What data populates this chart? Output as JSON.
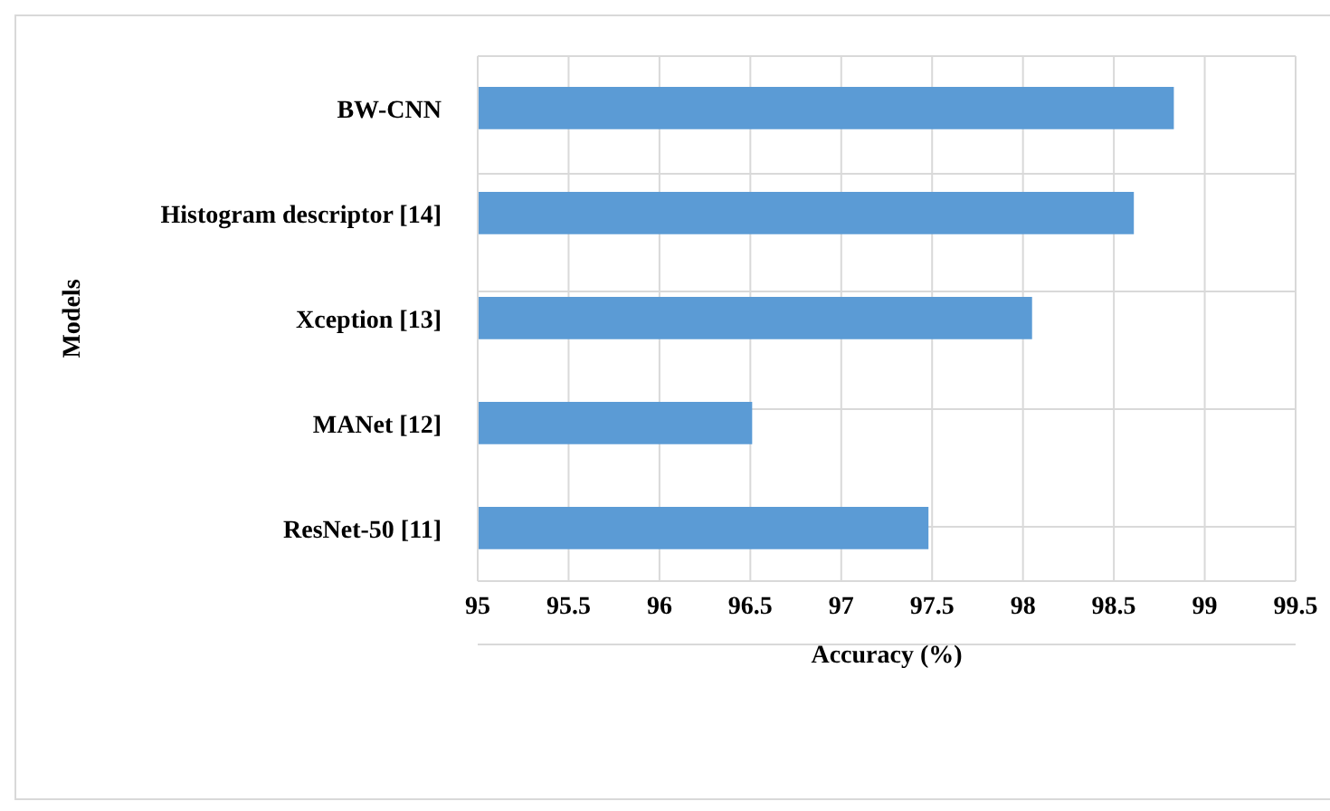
{
  "chart_data": {
    "type": "bar",
    "orientation": "horizontal",
    "xlabel": "Accuracy (%)",
    "ylabel": "Models",
    "categories": [
      "BW-CNN",
      "Histogram descriptor [14]",
      "Xception [13]",
      "MANet [12]",
      "ResNet-50 [11]"
    ],
    "values": [
      98.83,
      98.61,
      98.05,
      96.51,
      97.48
    ],
    "color": "#5b9bd5",
    "xlim": [
      95,
      99.5
    ],
    "xticks": [
      95,
      95.5,
      96,
      96.5,
      97,
      97.5,
      98,
      98.5,
      99,
      99.5
    ],
    "grid": true
  }
}
